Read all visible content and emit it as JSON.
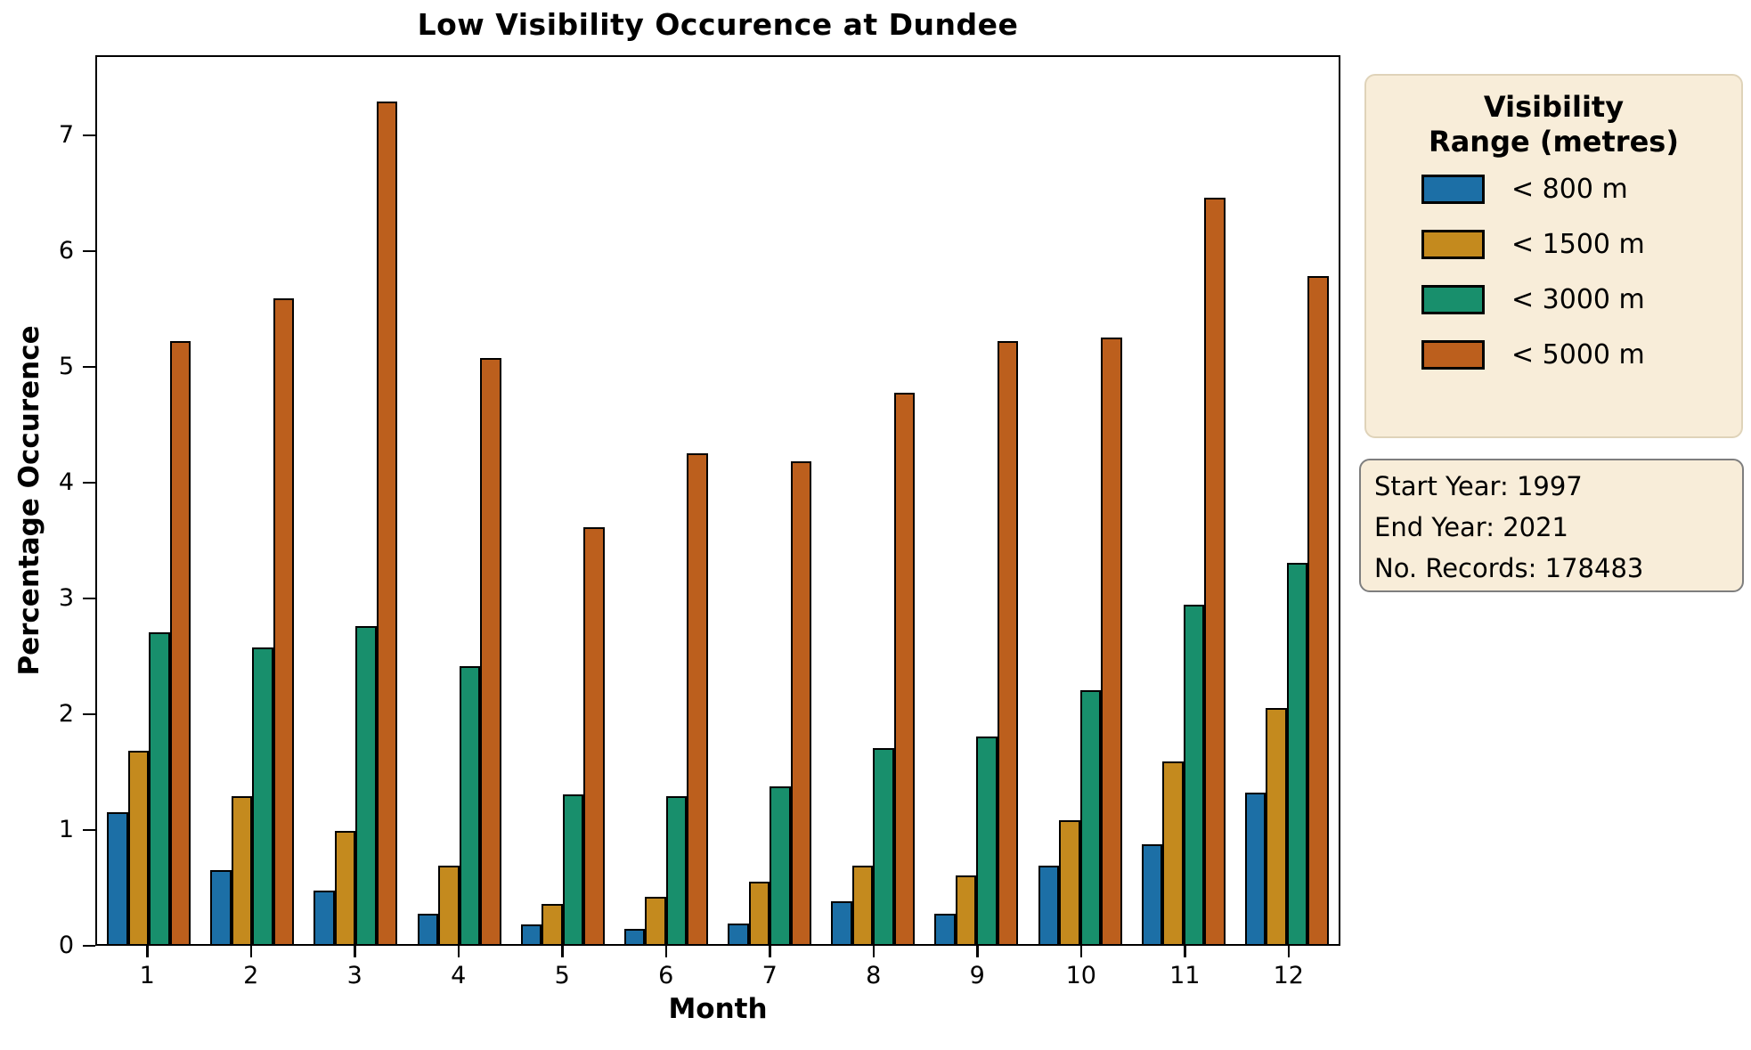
{
  "title": "Low Visibility Occurence at Dundee",
  "axes": {
    "xlabel": "Month",
    "ylabel": "Percentage Occurence",
    "yticks": [
      0,
      1,
      2,
      3,
      4,
      5,
      6,
      7
    ]
  },
  "legend": {
    "title_line1": "Visibility",
    "title_line2": "Range (metres)"
  },
  "infobox": {
    "lines": [
      "Start Year: 1997",
      "End Year: 2021",
      "No. Records: 178483"
    ]
  },
  "chart_data": {
    "type": "bar",
    "title": "Low Visibility Occurence at Dundee",
    "xlabel": "Month",
    "ylabel": "Percentage Occurence",
    "ylim": [
      0,
      7.69
    ],
    "grid": false,
    "legend_position": "outside-right",
    "categories": [
      "1",
      "2",
      "3",
      "4",
      "5",
      "6",
      "7",
      "8",
      "9",
      "10",
      "11",
      "12"
    ],
    "series": [
      {
        "name": "< 800 m",
        "color": "#1C6FA6",
        "values": [
          1.14,
          0.64,
          0.46,
          0.26,
          0.17,
          0.13,
          0.18,
          0.37,
          0.26,
          0.68,
          0.86,
          1.31
        ]
      },
      {
        "name": "< 1500 m",
        "color": "#C48A1E",
        "values": [
          1.67,
          1.28,
          0.98,
          0.68,
          0.35,
          0.41,
          0.54,
          0.68,
          0.59,
          1.07,
          1.58,
          2.04
        ]
      },
      {
        "name": "< 3000 m",
        "color": "#188F6C",
        "values": [
          2.69,
          2.56,
          2.75,
          2.4,
          1.29,
          1.28,
          1.36,
          1.69,
          1.79,
          2.19,
          2.93,
          3.29
        ]
      },
      {
        "name": "< 5000 m",
        "color": "#BC5F1D",
        "values": [
          5.21,
          5.58,
          7.28,
          5.06,
          3.6,
          4.24,
          4.17,
          4.76,
          5.21,
          5.24,
          6.45,
          5.77
        ]
      }
    ]
  }
}
